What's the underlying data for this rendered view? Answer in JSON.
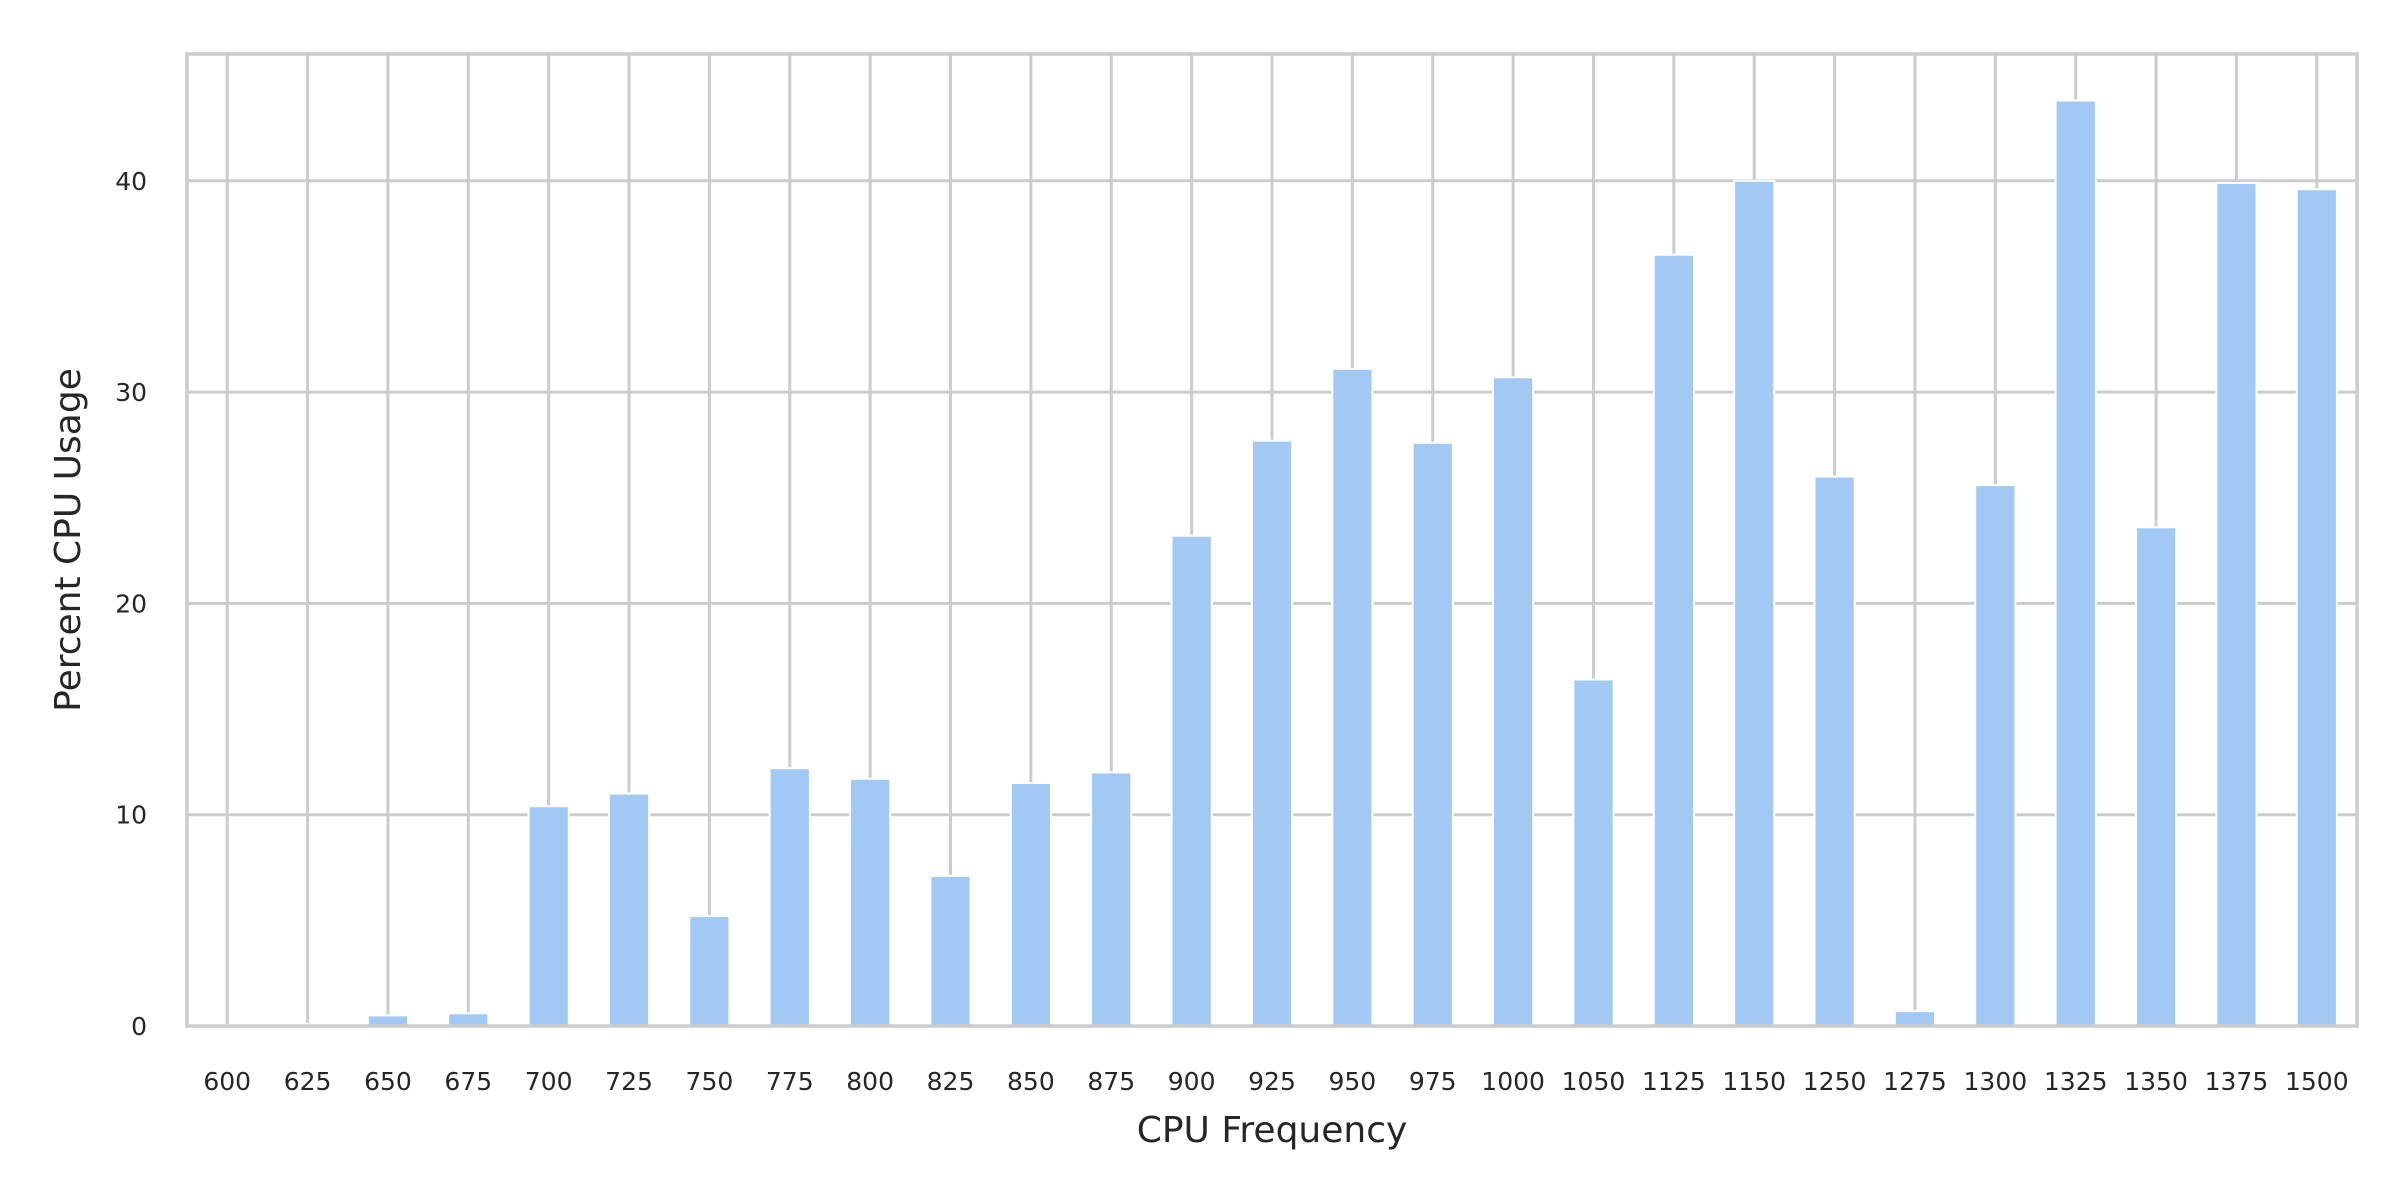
{
  "chart_data": {
    "type": "bar",
    "xlabel": "CPU Frequency",
    "ylabel": "Percent CPU Usage",
    "categories": [
      "600",
      "625",
      "650",
      "675",
      "700",
      "725",
      "750",
      "775",
      "800",
      "825",
      "850",
      "875",
      "900",
      "925",
      "950",
      "975",
      "1000",
      "1050",
      "1125",
      "1150",
      "1250",
      "1275",
      "1300",
      "1325",
      "1350",
      "1375",
      "1500"
    ],
    "values": [
      0.05,
      0.1,
      0.5,
      0.6,
      10.4,
      11.0,
      5.2,
      12.2,
      11.7,
      7.1,
      11.5,
      12.0,
      23.2,
      27.7,
      31.1,
      27.6,
      30.7,
      16.4,
      36.5,
      40.0,
      26.0,
      0.7,
      25.6,
      43.8,
      23.6,
      39.9,
      39.6
    ],
    "ylim": [
      0,
      46
    ],
    "yticks": [
      0,
      10,
      20,
      30,
      40
    ],
    "grid": true,
    "bar_color": "#a1c9f4",
    "grid_color": "#cccccc"
  }
}
